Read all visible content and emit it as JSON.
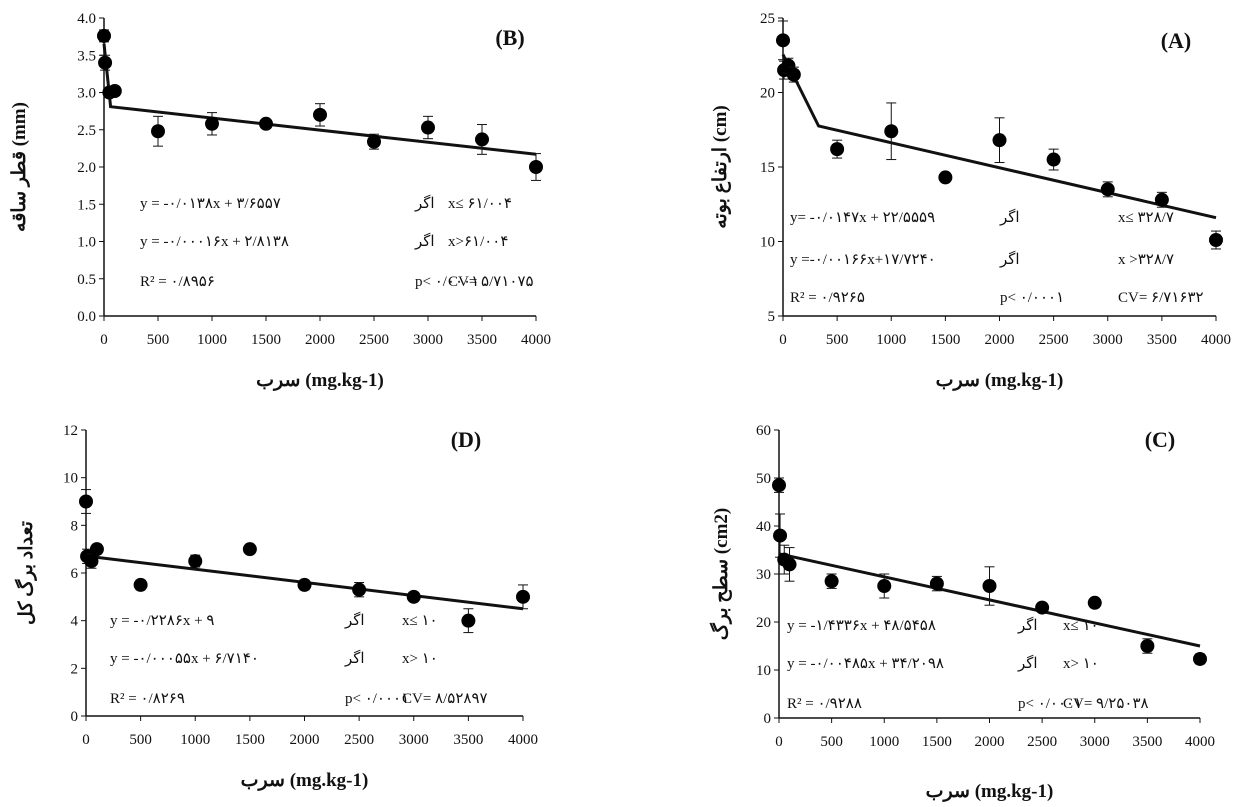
{
  "chart_data": [
    {
      "type": "scatter",
      "title": "(A)",
      "xlabel": "سرب (mg.kg-1)",
      "ylabel": "ارتفاع بوته (cm)",
      "xlim": [
        0,
        4000
      ],
      "ylim": [
        5,
        25
      ],
      "xticks": [
        0,
        500,
        1000,
        1500,
        2000,
        2500,
        3000,
        3500,
        4000
      ],
      "yticks": [
        5,
        10,
        15,
        20,
        25
      ],
      "grid": false,
      "legend": "none",
      "points": [
        {
          "x": 0,
          "y": 23.5,
          "err": 1.3
        },
        {
          "x": 10,
          "y": 21.5,
          "err": 0.6
        },
        {
          "x": 50,
          "y": 21.8,
          "err": 0.5
        },
        {
          "x": 100,
          "y": 21.2,
          "err": 0.5
        },
        {
          "x": 500,
          "y": 16.2,
          "err": 0.6
        },
        {
          "x": 1000,
          "y": 17.4,
          "err": 1.9
        },
        {
          "x": 1500,
          "y": 14.3,
          "err": 0
        },
        {
          "x": 2000,
          "y": 16.8,
          "err": 1.5
        },
        {
          "x": 2500,
          "y": 15.5,
          "err": 0.7
        },
        {
          "x": 3000,
          "y": 13.5,
          "err": 0.5
        },
        {
          "x": 3500,
          "y": 12.8,
          "err": 0.5
        },
        {
          "x": 4000,
          "y": 10.1,
          "err": 0.6
        }
      ],
      "fit": [
        [
          0,
          22.55
        ],
        [
          328.7,
          17.75
        ],
        [
          4000,
          11.6
        ]
      ],
      "annotations": [
        {
          "left": "y= -۰/۰۱۴۷x + ۲۲/۵۵۵۹",
          "cond": "اگر",
          "right": "x≤ ۳۲۸/۷"
        },
        {
          "left": "y =-۰/۰۰۱۶۶x+۱۷/۷۲۴۰",
          "cond": "اگر",
          "right": "x >۳۲۸/۷"
        },
        {
          "left": "R² = ۰/۹۲۶۵",
          "cond": "p< ۰/۰۰۰۱",
          "right": "CV= ۶/۷۱۶۳۲"
        }
      ]
    },
    {
      "type": "scatter",
      "title": "(B)",
      "xlabel": "سرب (mg.kg-1)",
      "ylabel": "قطر ساقه (mm)",
      "xlim": [
        0,
        4000
      ],
      "ylim": [
        0,
        4
      ],
      "xticks": [
        0,
        500,
        1000,
        1500,
        2000,
        2500,
        3000,
        3500,
        4000
      ],
      "yticks": [
        0.0,
        0.5,
        1.0,
        1.5,
        2.0,
        2.5,
        3.0,
        3.5,
        4.0
      ],
      "grid": false,
      "legend": "none",
      "points": [
        {
          "x": 0,
          "y": 3.76,
          "err": 0.08
        },
        {
          "x": 10,
          "y": 3.4,
          "err": 0.1
        },
        {
          "x": 50,
          "y": 3.0,
          "err": 0.06
        },
        {
          "x": 100,
          "y": 3.02,
          "err": 0.06
        },
        {
          "x": 500,
          "y": 2.48,
          "err": 0.2
        },
        {
          "x": 1000,
          "y": 2.58,
          "err": 0.15
        },
        {
          "x": 1500,
          "y": 2.58,
          "err": 0.05
        },
        {
          "x": 2000,
          "y": 2.7,
          "err": 0.15
        },
        {
          "x": 2500,
          "y": 2.34,
          "err": 0.1
        },
        {
          "x": 3000,
          "y": 2.53,
          "err": 0.15
        },
        {
          "x": 3500,
          "y": 2.37,
          "err": 0.2
        },
        {
          "x": 4000,
          "y": 2.0,
          "err": 0.18
        }
      ],
      "fit": [
        [
          0,
          3.6557
        ],
        [
          61.004,
          2.81
        ],
        [
          4000,
          2.17
        ]
      ],
      "annotations": [
        {
          "left": "y = -۰/۰۱۳۸x + ۳/۶۵۵۷",
          "cond": "اگر",
          "right": "x≤ ۶۱/۰۰۴"
        },
        {
          "left": "y = -۰/۰۰۰۱۶x + ۲/۸۱۳۸",
          "cond": "اگر",
          "right": "x>۶۱/۰۰۴"
        },
        {
          "left": "R² = ۰/۸۹۵۶",
          "cond": "p< ۰/۰۰۰۱",
          "right": "CV= ۵/۷۱۰۷۵"
        }
      ]
    },
    {
      "type": "scatter",
      "title": "(C)",
      "xlabel": "سرب (mg.kg-1)",
      "ylabel": "سطح برگ (cm2)",
      "xlim": [
        0,
        4000
      ],
      "ylim": [
        0,
        60
      ],
      "xticks": [
        0,
        500,
        1000,
        1500,
        2000,
        2500,
        3000,
        3500,
        4000
      ],
      "yticks": [
        0,
        10,
        20,
        30,
        40,
        50,
        60
      ],
      "grid": false,
      "legend": "none",
      "points": [
        {
          "x": 0,
          "y": 48.5,
          "err": 1.5
        },
        {
          "x": 10,
          "y": 38.0,
          "err": 4.5
        },
        {
          "x": 50,
          "y": 33.0,
          "err": 3.0
        },
        {
          "x": 100,
          "y": 32.0,
          "err": 3.5
        },
        {
          "x": 500,
          "y": 28.5,
          "err": 1.5
        },
        {
          "x": 1000,
          "y": 27.5,
          "err": 2.5
        },
        {
          "x": 1500,
          "y": 28.0,
          "err": 1.5
        },
        {
          "x": 2000,
          "y": 27.5,
          "err": 4.0
        },
        {
          "x": 2500,
          "y": 23.0,
          "err": 0.8
        },
        {
          "x": 3000,
          "y": 24.0,
          "err": 0.8
        },
        {
          "x": 3500,
          "y": 15.0,
          "err": 1.5
        },
        {
          "x": 4000,
          "y": 12.3,
          "err": 1.0
        }
      ],
      "fit": [
        [
          0,
          34.2
        ],
        [
          4000,
          15.0
        ]
      ],
      "annotations": [
        {
          "left": "y = -۱/۴۳۳۶x + ۴۸/۵۴۵۸",
          "cond": "اگر",
          "right": "x≤ ۱۰"
        },
        {
          "left": "y = -۰/۰۰۴۸۵x + ۳۴/۲۰۹۸",
          "cond": "اگر",
          "right": "x> ۱۰"
        },
        {
          "left": "R² = ۰/۹۲۸۸",
          "cond": "p< ۰/۰۰۰۱",
          "right": "CV= ۹/۲۵۰۳۸"
        }
      ]
    },
    {
      "type": "scatter",
      "title": "(D)",
      "xlabel": "سرب (mg.kg-1)",
      "ylabel": "تعداد برگ کل",
      "xlim": [
        0,
        4000
      ],
      "ylim": [
        0,
        12
      ],
      "xticks": [
        0,
        500,
        1000,
        1500,
        2000,
        2500,
        3000,
        3500,
        4000
      ],
      "yticks": [
        0,
        2,
        4,
        6,
        8,
        10,
        12
      ],
      "grid": false,
      "legend": "none",
      "points": [
        {
          "x": 0,
          "y": 9.0,
          "err": 0.5
        },
        {
          "x": 10,
          "y": 6.7,
          "err": 0.3
        },
        {
          "x": 50,
          "y": 6.5,
          "err": 0.3
        },
        {
          "x": 100,
          "y": 7.0,
          "err": 0.2
        },
        {
          "x": 500,
          "y": 5.5,
          "err": 0.2
        },
        {
          "x": 1000,
          "y": 6.5,
          "err": 0.25
        },
        {
          "x": 1500,
          "y": 7.0,
          "err": 0
        },
        {
          "x": 2000,
          "y": 5.5,
          "err": 0.2
        },
        {
          "x": 2500,
          "y": 5.3,
          "err": 0.3
        },
        {
          "x": 3000,
          "y": 5.0,
          "err": 0
        },
        {
          "x": 3500,
          "y": 4.0,
          "err": 0.5
        },
        {
          "x": 4000,
          "y": 5.0,
          "err": 0.5
        }
      ],
      "fit": [
        [
          0,
          6.714
        ],
        [
          4000,
          4.5
        ]
      ],
      "annotations": [
        {
          "left": "y = -۰/۲۲۸۶x + ۹",
          "cond": "اگر",
          "right": "x≤ ۱۰"
        },
        {
          "left": "y = -۰/۰۰۰۵۵x + ۶/۷۱۴۰",
          "cond": "اگر",
          "right": "x> ۱۰"
        },
        {
          "left": "R² = ۰/۸۲۶۹",
          "cond": "p< ۰/۰۰۰۱",
          "right": "CV= ۸/۵۲۸۹۷"
        }
      ]
    }
  ]
}
